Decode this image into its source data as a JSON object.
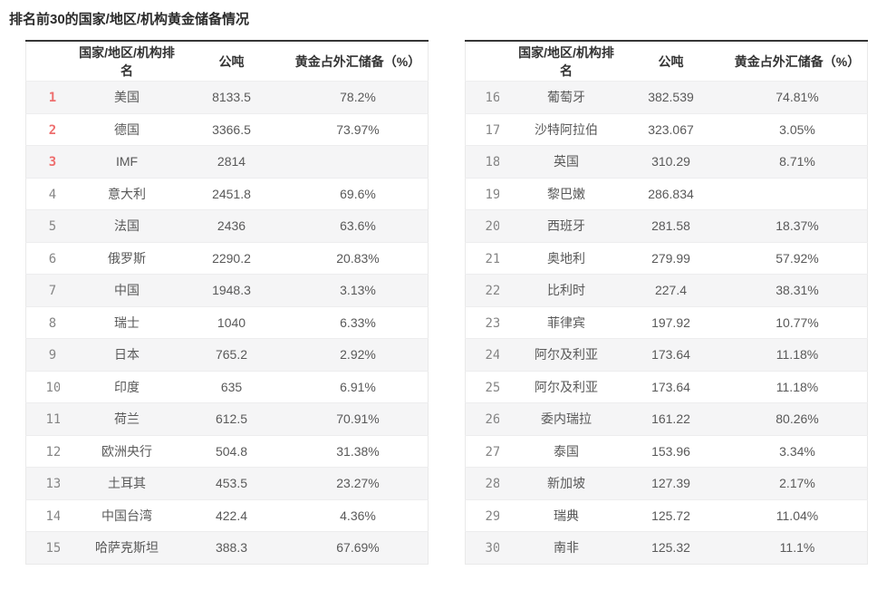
{
  "title": "排名前30的国家/地区/机构黄金储备情况",
  "columns": [
    "国家/地区/机构排名",
    "公吨",
    "黄金占外汇储备（%）"
  ],
  "colors": {
    "top_rank_red": "#ee6e6e",
    "rank_gray": "#858585",
    "header_text": "#333333",
    "body_text": "#595959",
    "stripe_bg": "#f5f5f6",
    "table_top_border": "#363636",
    "table_light_border": "#e9e9e9"
  },
  "tables": [
    {
      "rows": [
        {
          "rank": "1",
          "name": "美国",
          "tonnes": "8133.5",
          "pct": "78.2%"
        },
        {
          "rank": "2",
          "name": "德国",
          "tonnes": "3366.5",
          "pct": "73.97%"
        },
        {
          "rank": "3",
          "name": "IMF",
          "tonnes": "2814",
          "pct": ""
        },
        {
          "rank": "4",
          "name": "意大利",
          "tonnes": "2451.8",
          "pct": "69.6%"
        },
        {
          "rank": "5",
          "name": "法国",
          "tonnes": "2436",
          "pct": "63.6%"
        },
        {
          "rank": "6",
          "name": "俄罗斯",
          "tonnes": "2290.2",
          "pct": "20.83%"
        },
        {
          "rank": "7",
          "name": "中国",
          "tonnes": "1948.3",
          "pct": "3.13%"
        },
        {
          "rank": "8",
          "name": "瑞士",
          "tonnes": "1040",
          "pct": "6.33%"
        },
        {
          "rank": "9",
          "name": "日本",
          "tonnes": "765.2",
          "pct": "2.92%"
        },
        {
          "rank": "10",
          "name": "印度",
          "tonnes": "635",
          "pct": "6.91%"
        },
        {
          "rank": "11",
          "name": "荷兰",
          "tonnes": "612.5",
          "pct": "70.91%"
        },
        {
          "rank": "12",
          "name": "欧洲央行",
          "tonnes": "504.8",
          "pct": "31.38%"
        },
        {
          "rank": "13",
          "name": "土耳其",
          "tonnes": "453.5",
          "pct": "23.27%"
        },
        {
          "rank": "14",
          "name": "中国台湾",
          "tonnes": "422.4",
          "pct": "4.36%"
        },
        {
          "rank": "15",
          "name": "哈萨克斯坦",
          "tonnes": "388.3",
          "pct": "67.69%"
        }
      ]
    },
    {
      "rows": [
        {
          "rank": "16",
          "name": "葡萄牙",
          "tonnes": "382.539",
          "pct": "74.81%"
        },
        {
          "rank": "17",
          "name": "沙特阿拉伯",
          "tonnes": "323.067",
          "pct": "3.05%"
        },
        {
          "rank": "18",
          "name": "英国",
          "tonnes": "310.29",
          "pct": "8.71%"
        },
        {
          "rank": "19",
          "name": "黎巴嫩",
          "tonnes": "286.834",
          "pct": ""
        },
        {
          "rank": "20",
          "name": "西班牙",
          "tonnes": "281.58",
          "pct": "18.37%"
        },
        {
          "rank": "21",
          "name": "奥地利",
          "tonnes": "279.99",
          "pct": "57.92%"
        },
        {
          "rank": "22",
          "name": "比利时",
          "tonnes": "227.4",
          "pct": "38.31%"
        },
        {
          "rank": "23",
          "name": "菲律宾",
          "tonnes": "197.92",
          "pct": "10.77%"
        },
        {
          "rank": "24",
          "name": "阿尔及利亚",
          "tonnes": "173.64",
          "pct": "11.18%"
        },
        {
          "rank": "25",
          "name": "阿尔及利亚",
          "tonnes": "173.64",
          "pct": "11.18%"
        },
        {
          "rank": "26",
          "name": "委内瑞拉",
          "tonnes": "161.22",
          "pct": "80.26%"
        },
        {
          "rank": "27",
          "name": "泰国",
          "tonnes": "153.96",
          "pct": "3.34%"
        },
        {
          "rank": "28",
          "name": "新加坡",
          "tonnes": "127.39",
          "pct": "2.17%"
        },
        {
          "rank": "29",
          "name": "瑞典",
          "tonnes": "125.72",
          "pct": "11.04%"
        },
        {
          "rank": "30",
          "name": "南非",
          "tonnes": "125.32",
          "pct": "11.1%"
        }
      ]
    }
  ]
}
